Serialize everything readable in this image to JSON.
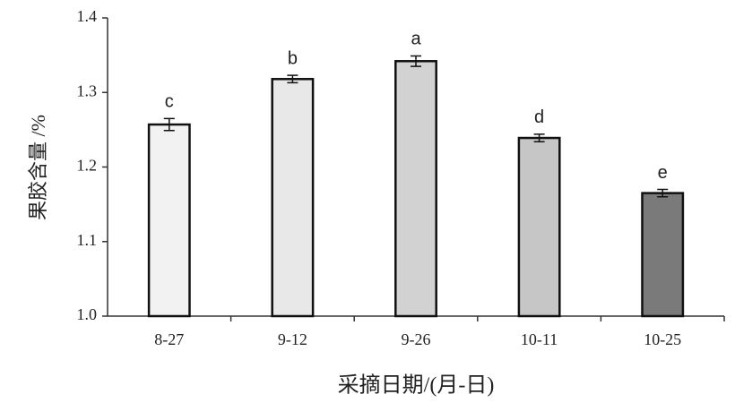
{
  "chart_data": {
    "type": "bar",
    "ylabel": "果胶含量 /%",
    "xlabel": "采摘日期/(月-日)",
    "categories": [
      "8-27",
      "9-12",
      "9-26",
      "10-11",
      "10-25"
    ],
    "values": [
      1.257,
      1.318,
      1.342,
      1.239,
      1.165
    ],
    "errors": [
      0.008,
      0.005,
      0.007,
      0.005,
      0.005
    ],
    "annotations": [
      "c",
      "b",
      "a",
      "d",
      "e"
    ],
    "colors": [
      "#f2f2f2",
      "#e8e8e8",
      "#d2d2d2",
      "#c6c6c6",
      "#7a7a7a"
    ],
    "ylim": [
      1.0,
      1.4
    ],
    "yticks": [
      {
        "value": 1.0,
        "label": "1.0"
      },
      1.1,
      1.2,
      1.3,
      1.4
    ],
    "grid": false
  }
}
